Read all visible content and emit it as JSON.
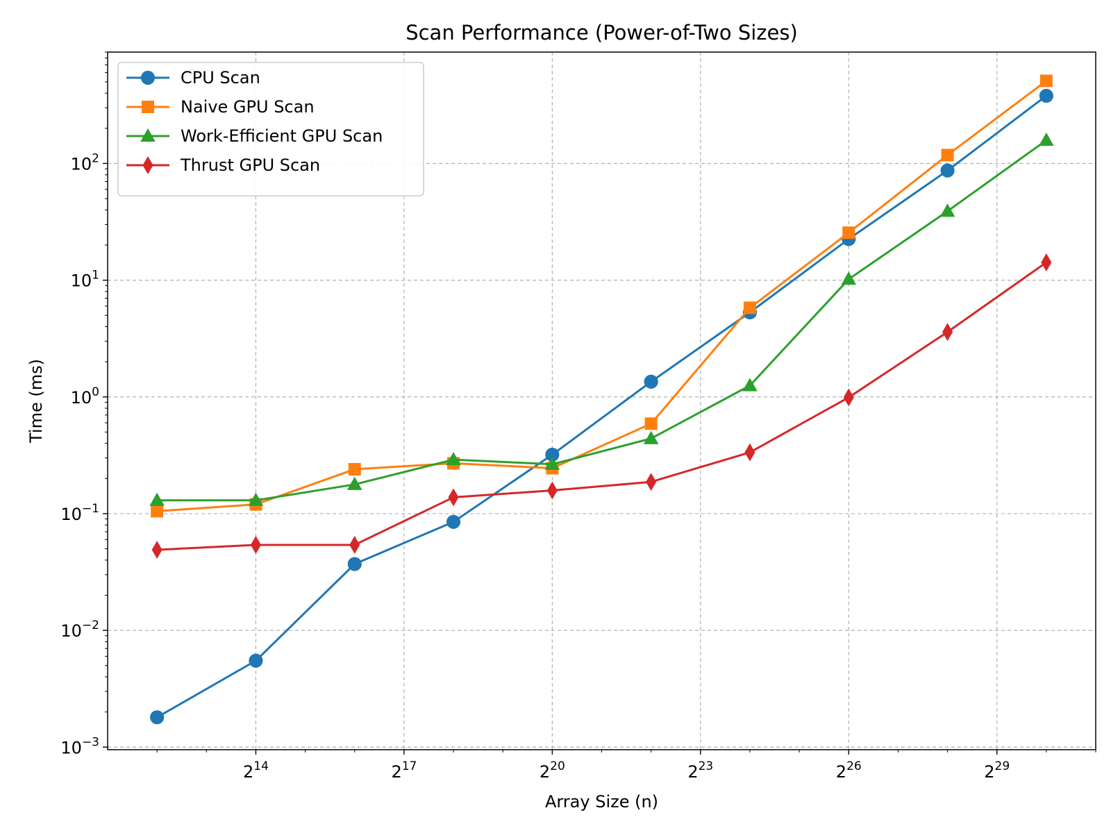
{
  "chart_data": {
    "type": "line",
    "title": "Scan Performance (Power-of-Two Sizes)",
    "xlabel": "Array Size (n)",
    "ylabel": "Time (ms)",
    "x_scale": "log2",
    "y_scale": "log10",
    "x_ticks": [
      {
        "base": "2",
        "exp": "14",
        "value": 16384
      },
      {
        "base": "2",
        "exp": "17",
        "value": 131072
      },
      {
        "base": "2",
        "exp": "20",
        "value": 1048576
      },
      {
        "base": "2",
        "exp": "23",
        "value": 8388608
      },
      {
        "base": "2",
        "exp": "26",
        "value": 67108864
      },
      {
        "base": "2",
        "exp": "29",
        "value": 536870912
      }
    ],
    "y_ticks": [
      {
        "base": "10",
        "exp": "−3",
        "value": 0.001
      },
      {
        "base": "10",
        "exp": "−2",
        "value": 0.01
      },
      {
        "base": "10",
        "exp": "−1",
        "value": 0.1
      },
      {
        "base": "10",
        "exp": "0",
        "value": 1
      },
      {
        "base": "10",
        "exp": "1",
        "value": 10
      },
      {
        "base": "10",
        "exp": "2",
        "value": 100
      }
    ],
    "x": [
      4096,
      16384,
      65536,
      262144,
      1048576,
      4194304,
      16777216,
      67108864,
      268435456,
      1073741824
    ],
    "xlim": [
      2048,
      2147483648
    ],
    "ylim": [
      0.00095,
      900
    ],
    "grid": true,
    "legend_position": "top-left",
    "series": [
      {
        "name": "CPU Scan",
        "color": "#1f77b4",
        "marker": "circle",
        "values": [
          0.0018,
          0.0055,
          0.037,
          0.085,
          0.32,
          1.35,
          5.3,
          22.5,
          87,
          380
        ]
      },
      {
        "name": "Naive GPU Scan",
        "color": "#ff7f0e",
        "marker": "square",
        "values": [
          0.105,
          0.12,
          0.24,
          0.27,
          0.245,
          0.59,
          5.8,
          25.5,
          118,
          510
        ]
      },
      {
        "name": "Work-Efficient GPU Scan",
        "color": "#2ca02c",
        "marker": "triangle",
        "values": [
          0.13,
          0.13,
          0.178,
          0.29,
          0.265,
          0.44,
          1.25,
          10.2,
          39,
          158
        ]
      },
      {
        "name": "Thrust GPU Scan",
        "color": "#d62728",
        "marker": "diamond",
        "values": [
          0.049,
          0.054,
          0.054,
          0.138,
          0.158,
          0.187,
          0.335,
          0.99,
          3.6,
          14.2
        ]
      }
    ]
  }
}
